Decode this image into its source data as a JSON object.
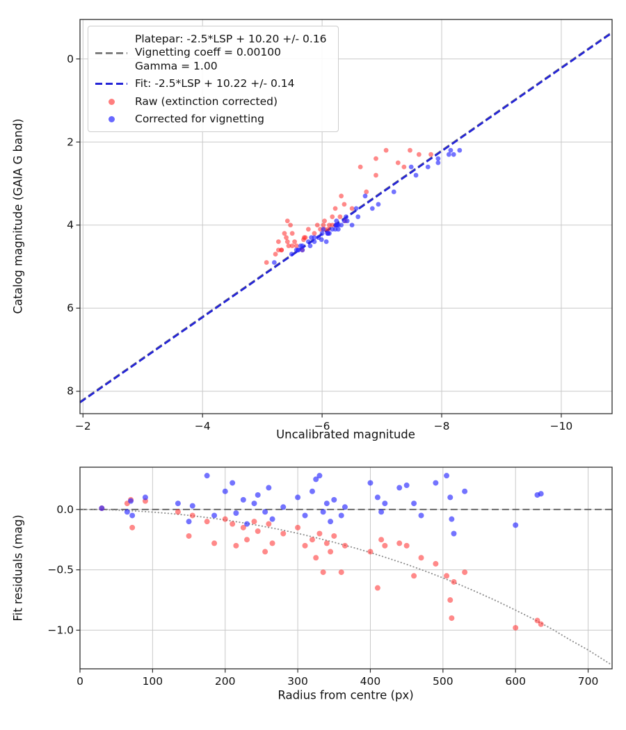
{
  "chart_data": [
    {
      "type": "scatter",
      "title": "",
      "xlabel": "Uncalibrated magnitude",
      "ylabel": "Catalog magnitude (GAIA G band)",
      "xlim": [
        -1.95,
        -10.85
      ],
      "ylim": [
        8.54,
        -0.95
      ],
      "x_ticks": [
        -2,
        -4,
        -6,
        -8,
        -10
      ],
      "x_tick_labels": [
        "−2",
        "−4",
        "−6",
        "−8",
        "−10"
      ],
      "y_ticks": [
        0,
        2,
        4,
        6,
        8
      ],
      "y_tick_labels": [
        "0",
        "2",
        "4",
        "6",
        "8"
      ],
      "grid": true,
      "lines": [
        {
          "name": "platepar-line",
          "style": "dashed",
          "color": "#7f7f7f",
          "width": 2.2,
          "points": [
            [
              -1.95,
              8.25
            ],
            [
              -10.85,
              -0.65
            ]
          ]
        },
        {
          "name": "fit-line",
          "style": "dashed",
          "color": "#2424d6",
          "width": 2.8,
          "points": [
            [
              -1.95,
              8.27
            ],
            [
              -10.85,
              -0.63
            ]
          ]
        }
      ],
      "series": [
        {
          "name": "Raw (extinction corrected)",
          "color": "rgba(255,40,40,0.55)",
          "size": 3.4,
          "points": [
            [
              -6.23,
              4.0
            ],
            [
              -5.67,
              4.6
            ],
            [
              -6.1,
              4.2
            ],
            [
              -5.57,
              4.5
            ],
            [
              -6.39,
              3.9
            ],
            [
              -6.1,
              4.1
            ],
            [
              -5.7,
              4.3
            ],
            [
              -6.17,
              4.0
            ],
            [
              -7.82,
              2.3
            ],
            [
              -5.54,
              4.4
            ],
            [
              -6.04,
              4.1
            ],
            [
              -6.5,
              3.6
            ],
            [
              -5.22,
              4.7
            ],
            [
              -5.87,
              4.2
            ],
            [
              -5.07,
              4.9
            ],
            [
              -6.12,
              4.0
            ],
            [
              -5.69,
              4.35
            ],
            [
              -5.27,
              4.6
            ],
            [
              -6.3,
              3.8
            ],
            [
              -5.44,
              4.5
            ],
            [
              -5.72,
              4.3
            ],
            [
              -5.97,
              4.1
            ],
            [
              -5.32,
              4.6
            ],
            [
              -7.37,
              2.6
            ],
            [
              -5.42,
              4.4
            ],
            [
              -6.02,
              4.0
            ],
            [
              -5.5,
              4.2
            ],
            [
              -6.04,
              3.9
            ],
            [
              -5.77,
              4.1
            ],
            [
              -5.5,
              4.5
            ],
            [
              -5.4,
              4.3
            ],
            [
              -5.92,
              4.0
            ],
            [
              -6.37,
              3.5
            ],
            [
              -5.37,
              4.2
            ],
            [
              -6.17,
              3.8
            ],
            [
              -5.32,
              4.6
            ],
            [
              -6.74,
              3.2
            ],
            [
              -7.62,
              2.3
            ],
            [
              -5.27,
              4.4
            ],
            [
              -6.22,
              3.6
            ],
            [
              -7.27,
              2.5
            ],
            [
              -7.47,
              2.2
            ],
            [
              -5.47,
              4.0
            ],
            [
              -5.42,
              3.9
            ],
            [
              -6.32,
              3.3
            ],
            [
              -6.9,
              2.8
            ],
            [
              -6.64,
              2.6
            ],
            [
              -6.9,
              2.4
            ],
            [
              -7.07,
              2.2
            ]
          ]
        },
        {
          "name": "Corrected for vignetting",
          "color": "rgba(40,40,255,0.65)",
          "size": 3.4,
          "points": [
            [
              -6.23,
              4.0
            ],
            [
              -5.6,
              4.6
            ],
            [
              -6.09,
              4.2
            ],
            [
              -5.67,
              4.5
            ],
            [
              -6.42,
              3.9
            ],
            [
              -6.17,
              4.1
            ],
            [
              -5.82,
              4.3
            ],
            [
              -6.25,
              4.0
            ],
            [
              -8.2,
              2.3
            ],
            [
              -5.77,
              4.4
            ],
            [
              -6.27,
              4.1
            ],
            [
              -6.84,
              3.6
            ],
            [
              -5.49,
              4.7
            ],
            [
              -6.1,
              4.2
            ],
            [
              -5.2,
              4.9
            ],
            [
              -6.27,
              4.0
            ],
            [
              -5.99,
              4.35
            ],
            [
              -5.6,
              4.6
            ],
            [
              -6.6,
              3.8
            ],
            [
              -5.64,
              4.5
            ],
            [
              -5.94,
              4.3
            ],
            [
              -6.22,
              4.1
            ],
            [
              -5.57,
              4.6
            ],
            [
              -7.77,
              2.6
            ],
            [
              -6.07,
              4.4
            ],
            [
              -6.5,
              4.0
            ],
            [
              -6.0,
              4.2
            ],
            [
              -6.37,
              3.9
            ],
            [
              -6.02,
              4.1
            ],
            [
              -5.8,
              4.5
            ],
            [
              -5.87,
              4.3
            ],
            [
              -6.24,
              4.0
            ],
            [
              -6.94,
              3.5
            ],
            [
              -6.12,
              4.2
            ],
            [
              -6.4,
              3.8
            ],
            [
              -5.67,
              4.6
            ],
            [
              -7.2,
              3.2
            ],
            [
              -8.12,
              2.3
            ],
            [
              -5.87,
              4.4
            ],
            [
              -6.57,
              3.6
            ],
            [
              -7.94,
              2.5
            ],
            [
              -8.3,
              2.2
            ],
            [
              -6.32,
              4.0
            ],
            [
              -6.24,
              3.9
            ],
            [
              -6.72,
              3.3
            ],
            [
              -7.57,
              2.8
            ],
            [
              -7.49,
              2.6
            ],
            [
              -7.94,
              2.4
            ],
            [
              -8.15,
              2.2
            ]
          ]
        }
      ]
    },
    {
      "type": "scatter",
      "title": "",
      "xlabel": "Radius from centre (px)",
      "ylabel": "Fit residuals (mag)",
      "xlim": [
        0,
        733
      ],
      "ylim": [
        -1.32,
        0.35
      ],
      "x_ticks": [
        0,
        100,
        200,
        300,
        400,
        500,
        600,
        700
      ],
      "x_tick_labels": [
        "0",
        "100",
        "200",
        "300",
        "400",
        "500",
        "600",
        "700"
      ],
      "y_ticks": [
        0.0,
        -0.5,
        -1.0
      ],
      "y_tick_labels": [
        "0.0",
        "−0.5",
        "−1.0"
      ],
      "grid": true,
      "lines": [
        {
          "name": "zero-residual-line",
          "style": "dashed",
          "color": "#555555",
          "width": 1.8,
          "points": [
            [
              0,
              0
            ],
            [
              733,
              0
            ]
          ]
        },
        {
          "name": "vignetting-model-curve",
          "style": "dotted",
          "color": "#909090",
          "width": 2.0,
          "points": [
            [
              0,
              0
            ],
            [
              25,
              -0.001
            ],
            [
              50,
              -0.005
            ],
            [
              75,
              -0.012
            ],
            [
              100,
              -0.022
            ],
            [
              125,
              -0.034
            ],
            [
              150,
              -0.049
            ],
            [
              175,
              -0.067
            ],
            [
              200,
              -0.087
            ],
            [
              225,
              -0.111
            ],
            [
              250,
              -0.137
            ],
            [
              275,
              -0.166
            ],
            [
              300,
              -0.198
            ],
            [
              325,
              -0.234
            ],
            [
              350,
              -0.272
            ],
            [
              375,
              -0.313
            ],
            [
              400,
              -0.357
            ],
            [
              425,
              -0.405
            ],
            [
              450,
              -0.455
            ],
            [
              475,
              -0.509
            ],
            [
              500,
              -0.567
            ],
            [
              525,
              -0.628
            ],
            [
              550,
              -0.693
            ],
            [
              575,
              -0.761
            ],
            [
              600,
              -0.834
            ],
            [
              625,
              -0.909
            ],
            [
              650,
              -0.99
            ],
            [
              675,
              -1.08
            ],
            [
              700,
              -1.164
            ],
            [
              733,
              -1.29
            ]
          ]
        }
      ],
      "series": [
        {
          "name": "Raw (extinction corrected)",
          "color": "rgba(255,40,40,0.55)",
          "size": 4.0,
          "points": [
            [
              30,
              0.01
            ],
            [
              65,
              0.05
            ],
            [
              70,
              0.08
            ],
            [
              72,
              -0.15
            ],
            [
              90,
              0.07
            ],
            [
              135,
              -0.02
            ],
            [
              150,
              -0.22
            ],
            [
              155,
              -0.05
            ],
            [
              175,
              -0.1
            ],
            [
              185,
              -0.28
            ],
            [
              200,
              -0.08
            ],
            [
              210,
              -0.12
            ],
            [
              215,
              -0.3
            ],
            [
              225,
              -0.15
            ],
            [
              230,
              -0.25
            ],
            [
              240,
              -0.1
            ],
            [
              245,
              -0.18
            ],
            [
              255,
              -0.35
            ],
            [
              260,
              -0.12
            ],
            [
              265,
              -0.28
            ],
            [
              280,
              -0.2
            ],
            [
              300,
              -0.15
            ],
            [
              310,
              -0.3
            ],
            [
              320,
              -0.25
            ],
            [
              325,
              -0.4
            ],
            [
              330,
              -0.2
            ],
            [
              335,
              -0.52
            ],
            [
              340,
              -0.28
            ],
            [
              345,
              -0.35
            ],
            [
              350,
              -0.22
            ],
            [
              360,
              -0.52
            ],
            [
              365,
              -0.3
            ],
            [
              400,
              -0.35
            ],
            [
              410,
              -0.65
            ],
            [
              415,
              -0.25
            ],
            [
              420,
              -0.3
            ],
            [
              440,
              -0.28
            ],
            [
              450,
              -0.3
            ],
            [
              460,
              -0.55
            ],
            [
              470,
              -0.4
            ],
            [
              490,
              -0.45
            ],
            [
              505,
              -0.55
            ],
            [
              510,
              -0.75
            ],
            [
              512,
              -0.9
            ],
            [
              515,
              -0.6
            ],
            [
              530,
              -0.52
            ],
            [
              600,
              -0.98
            ],
            [
              630,
              -0.92
            ],
            [
              635,
              -0.95
            ]
          ]
        },
        {
          "name": "Corrected for vignetting",
          "color": "rgba(40,40,255,0.65)",
          "size": 4.0,
          "points": [
            [
              30,
              0.01
            ],
            [
              65,
              -0.02
            ],
            [
              70,
              0.07
            ],
            [
              72,
              -0.05
            ],
            [
              90,
              0.1
            ],
            [
              135,
              0.05
            ],
            [
              150,
              -0.1
            ],
            [
              155,
              0.03
            ],
            [
              175,
              0.28
            ],
            [
              185,
              -0.05
            ],
            [
              200,
              0.15
            ],
            [
              210,
              0.22
            ],
            [
              215,
              -0.03
            ],
            [
              225,
              0.08
            ],
            [
              230,
              -0.12
            ],
            [
              240,
              0.05
            ],
            [
              245,
              0.12
            ],
            [
              255,
              -0.02
            ],
            [
              260,
              0.18
            ],
            [
              265,
              -0.08
            ],
            [
              280,
              0.02
            ],
            [
              300,
              0.1
            ],
            [
              310,
              -0.05
            ],
            [
              320,
              0.15
            ],
            [
              325,
              0.25
            ],
            [
              330,
              0.28
            ],
            [
              335,
              -0.02
            ],
            [
              340,
              0.05
            ],
            [
              345,
              -0.1
            ],
            [
              350,
              0.08
            ],
            [
              360,
              -0.05
            ],
            [
              365,
              0.02
            ],
            [
              400,
              0.22
            ],
            [
              410,
              0.1
            ],
            [
              415,
              -0.02
            ],
            [
              420,
              0.05
            ],
            [
              440,
              0.18
            ],
            [
              450,
              0.2
            ],
            [
              460,
              0.05
            ],
            [
              470,
              -0.05
            ],
            [
              490,
              0.22
            ],
            [
              505,
              0.28
            ],
            [
              510,
              0.1
            ],
            [
              512,
              -0.08
            ],
            [
              515,
              -0.2
            ],
            [
              530,
              0.15
            ],
            [
              600,
              -0.13
            ],
            [
              630,
              0.12
            ],
            [
              635,
              0.13
            ]
          ]
        }
      ]
    }
  ],
  "legend": {
    "entries": [
      {
        "type": "line",
        "color": "#7f7f7f",
        "lines": [
          "Platepar: -2.5*LSP + 10.20 +/- 0.16",
          "Vignetting coeff = 0.00100",
          "Gamma = 1.00"
        ]
      },
      {
        "type": "line",
        "color": "#2424d6",
        "lines": [
          "Fit: -2.5*LSP + 10.22 +/- 0.14"
        ]
      },
      {
        "type": "marker",
        "color": "rgba(255,40,40,0.6)",
        "lines": [
          "Raw (extinction corrected)"
        ]
      },
      {
        "type": "marker",
        "color": "rgba(40,40,255,0.7)",
        "lines": [
          "Corrected for vignetting"
        ]
      }
    ]
  },
  "colors": {
    "grid": "#c8c8c8",
    "spine": "#2b2b2b",
    "tick_text": "#111111"
  }
}
